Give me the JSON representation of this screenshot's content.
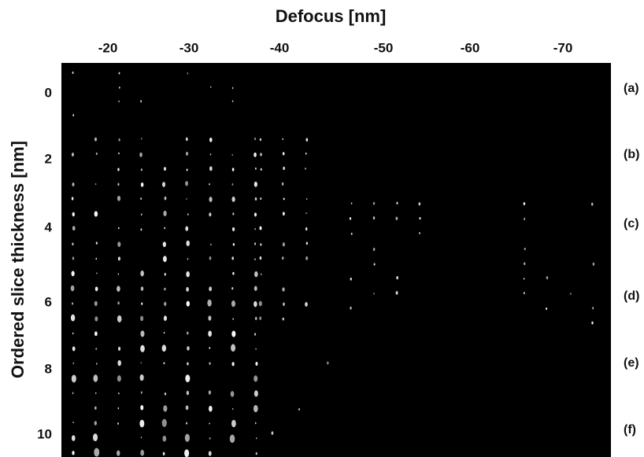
{
  "figure": {
    "title": "Defocus [nm]",
    "y_label": "Ordered slice thickness [nm]",
    "x_ticks": [
      "-20",
      "-30",
      "-40",
      "-50",
      "-60",
      "-70"
    ],
    "y_ticks": [
      "0",
      "2",
      "4",
      "6",
      "8",
      "10"
    ],
    "row_labels": [
      "(a)",
      "(b)",
      "(c)",
      "(d)",
      "(e)",
      "(f)"
    ]
  }
}
